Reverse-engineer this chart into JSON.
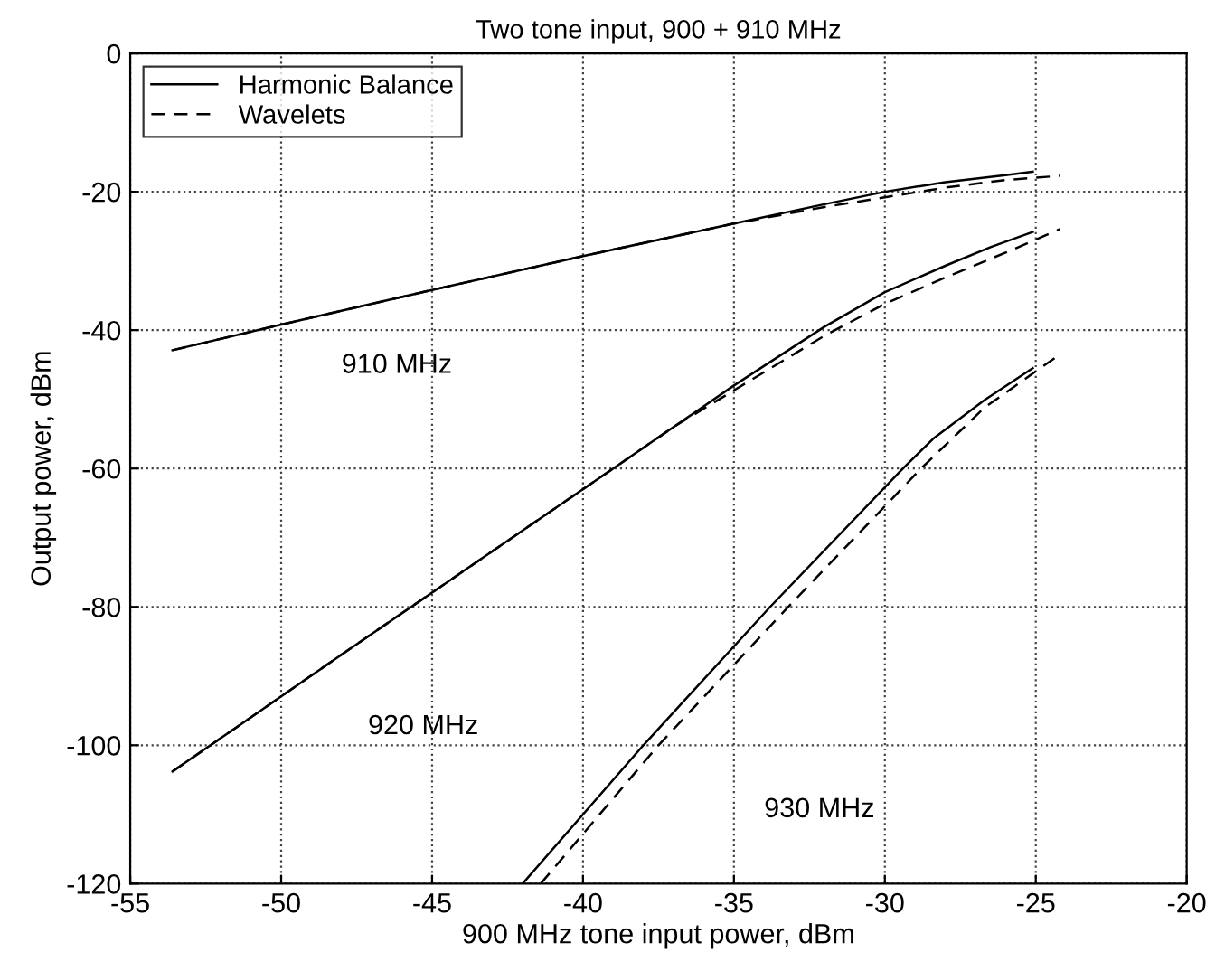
{
  "chart_data": {
    "type": "line",
    "title": "Two tone input, 900 + 910 MHz",
    "xlabel": "900 MHz tone input power, dBm",
    "ylabel": "Output power, dBm",
    "xlim": [
      -55,
      -20
    ],
    "ylim": [
      -120,
      0
    ],
    "xticks": [
      -55,
      -50,
      -45,
      -40,
      -35,
      -30,
      -25,
      -20
    ],
    "yticks": [
      -120,
      -100,
      -80,
      -60,
      -40,
      -20,
      0
    ],
    "grid": true,
    "legend": "top left",
    "marker": "none",
    "series": [
      {
        "name": "Harmonic Balance",
        "color": "#000000",
        "line_style": "solid",
        "x": [
          -53.6,
          -50,
          -45,
          -40,
          -35,
          -32,
          -30,
          -28,
          -26,
          -25.1
        ],
        "values": [
          -42.9,
          -39.2,
          -34.2,
          -29.3,
          -24.6,
          -21.8,
          -20.0,
          -18.6,
          -17.6,
          -17.1
        ]
      },
      {
        "name": "Wavelets",
        "color": "#000000",
        "line_style": "dashed",
        "x": [
          -53.6,
          -50,
          -45,
          -40,
          -35,
          -32,
          -30,
          -28,
          -26,
          -24.2
        ],
        "values": [
          -42.9,
          -39.2,
          -34.2,
          -29.3,
          -24.6,
          -22.2,
          -20.8,
          -19.4,
          -18.3,
          -17.7
        ]
      },
      {
        "color": "#000000",
        "line_style": "solid",
        "x": [
          -53.6,
          -47.8,
          -39,
          -35,
          -32,
          -30,
          -28,
          -26.5,
          -25.1
        ],
        "values": [
          -103.8,
          -86.3,
          -60,
          -48,
          -39.5,
          -34.5,
          -30.7,
          -28,
          -25.8
        ]
      },
      {
        "color": "#000000",
        "line_style": "dashed",
        "x": [
          -53.6,
          -47.8,
          -39,
          -37,
          -35,
          -32,
          -30,
          -28,
          -26,
          -24.2
        ],
        "values": [
          -103.8,
          -86.3,
          -60,
          -54,
          -48.7,
          -40.8,
          -36.2,
          -32.4,
          -28.8,
          -25.4
        ]
      },
      {
        "color": "#000000",
        "line_style": "solid",
        "x": [
          -42.0,
          -38.0,
          -33.8,
          -29.4,
          -28.4,
          -26.7,
          -25.1
        ],
        "values": [
          -120,
          -100,
          -80,
          -60,
          -55.7,
          -50.1,
          -45.5
        ]
      },
      {
        "color": "#000000",
        "line_style": "dashed",
        "x": [
          -41.4,
          -37.5,
          -33.2,
          -28.8,
          -26.7,
          -24.2
        ],
        "values": [
          -120,
          -100,
          -80,
          -60,
          -51.2,
          -43.5
        ]
      }
    ],
    "annotations": [
      "910 MHz",
      "920 MHz",
      "930 MHz"
    ]
  }
}
